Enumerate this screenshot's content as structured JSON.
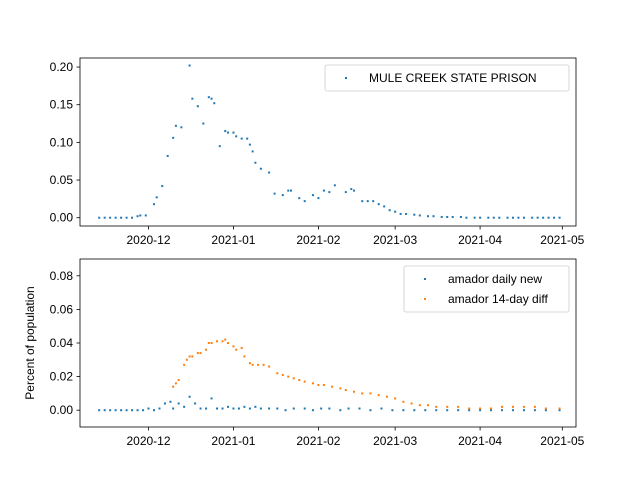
{
  "chart_data": [
    {
      "type": "scatter",
      "x_axis": {
        "ticks": [
          "2020-12",
          "2021-01",
          "2021-02",
          "2021-03",
          "2021-04",
          "2021-05"
        ],
        "range": [
          "2020-11-06",
          "2021-05-06"
        ]
      },
      "y_axis": {
        "label": "",
        "ticks": [
          "0.00",
          "0.05",
          "0.10",
          "0.15",
          "0.20"
        ],
        "range": [
          -0.011,
          0.212
        ]
      },
      "legend": {
        "position": "upper-right"
      },
      "series": [
        {
          "name": "MULE CREEK STATE PRISON",
          "color": "#1f77b4",
          "points": [
            [
              "2020-11-13",
              0
            ],
            [
              "2020-11-15",
              0
            ],
            [
              "2020-11-17",
              0
            ],
            [
              "2020-11-19",
              0
            ],
            [
              "2020-11-21",
              0
            ],
            [
              "2020-11-23",
              0
            ],
            [
              "2020-11-25",
              0
            ],
            [
              "2020-11-27",
              0.002
            ],
            [
              "2020-11-28",
              0.003
            ],
            [
              "2020-11-30",
              0.003
            ],
            [
              "2020-12-03",
              0.018
            ],
            [
              "2020-12-04",
              0.027
            ],
            [
              "2020-12-06",
              0.042
            ],
            [
              "2020-12-08",
              0.082
            ],
            [
              "2020-12-10",
              0.106
            ],
            [
              "2020-12-11",
              0.122
            ],
            [
              "2020-12-13",
              0.12
            ],
            [
              "2020-12-16",
              0.202
            ],
            [
              "2020-12-17",
              0.158
            ],
            [
              "2020-12-19",
              0.148
            ],
            [
              "2020-12-21",
              0.125
            ],
            [
              "2020-12-23",
              0.16
            ],
            [
              "2020-12-24",
              0.158
            ],
            [
              "2020-12-25",
              0.152
            ],
            [
              "2020-12-27",
              0.095
            ],
            [
              "2020-12-29",
              0.115
            ],
            [
              "2020-12-30",
              0.113
            ],
            [
              "2021-01-01",
              0.113
            ],
            [
              "2021-01-02",
              0.108
            ],
            [
              "2021-01-04",
              0.105
            ],
            [
              "2021-01-06",
              0.105
            ],
            [
              "2021-01-07",
              0.097
            ],
            [
              "2021-01-08",
              0.088
            ],
            [
              "2021-01-09",
              0.073
            ],
            [
              "2021-01-11",
              0.065
            ],
            [
              "2021-01-14",
              0.06
            ],
            [
              "2021-01-16",
              0.032
            ],
            [
              "2021-01-19",
              0.03
            ],
            [
              "2021-01-21",
              0.036
            ],
            [
              "2021-01-22",
              0.036
            ],
            [
              "2021-01-25",
              0.026
            ],
            [
              "2021-01-27",
              0.022
            ],
            [
              "2021-01-30",
              0.03
            ],
            [
              "2021-02-01",
              0.026
            ],
            [
              "2021-02-03",
              0.036
            ],
            [
              "2021-02-05",
              0.034
            ],
            [
              "2021-02-07",
              0.043
            ],
            [
              "2021-02-11",
              0.034
            ],
            [
              "2021-02-13",
              0.038
            ],
            [
              "2021-02-14",
              0.036
            ],
            [
              "2021-02-17",
              0.022
            ],
            [
              "2021-02-19",
              0.022
            ],
            [
              "2021-02-21",
              0.022
            ],
            [
              "2021-02-23",
              0.018
            ],
            [
              "2021-02-25",
              0.015
            ],
            [
              "2021-02-27",
              0.01
            ],
            [
              "2021-03-01",
              0.008
            ],
            [
              "2021-03-03",
              0.005
            ],
            [
              "2021-03-05",
              0.005
            ],
            [
              "2021-03-08",
              0.004
            ],
            [
              "2021-03-10",
              0.003
            ],
            [
              "2021-03-13",
              0.002
            ],
            [
              "2021-03-15",
              0.002
            ],
            [
              "2021-03-18",
              0.001
            ],
            [
              "2021-03-20",
              0.001
            ],
            [
              "2021-03-22",
              0.001
            ],
            [
              "2021-03-25",
              0.001
            ],
            [
              "2021-03-27",
              0
            ],
            [
              "2021-03-30",
              0
            ],
            [
              "2021-04-01",
              0
            ],
            [
              "2021-04-04",
              0
            ],
            [
              "2021-04-06",
              0
            ],
            [
              "2021-04-08",
              0
            ],
            [
              "2021-04-11",
              0
            ],
            [
              "2021-04-13",
              0
            ],
            [
              "2021-04-15",
              0
            ],
            [
              "2021-04-17",
              0
            ],
            [
              "2021-04-20",
              0
            ],
            [
              "2021-04-22",
              0
            ],
            [
              "2021-04-24",
              0
            ],
            [
              "2021-04-26",
              0
            ],
            [
              "2021-04-28",
              0
            ],
            [
              "2021-04-30",
              0
            ]
          ]
        }
      ]
    },
    {
      "type": "scatter",
      "x_axis": {
        "ticks": [
          "2020-12",
          "2021-01",
          "2021-02",
          "2021-03",
          "2021-04",
          "2021-05"
        ],
        "range": [
          "2020-11-06",
          "2021-05-06"
        ]
      },
      "y_axis": {
        "label": "Percent of population",
        "ticks": [
          "0.00",
          "0.02",
          "0.04",
          "0.06",
          "0.08"
        ],
        "range": [
          -0.01,
          0.09
        ]
      },
      "legend": {
        "position": "upper-right"
      },
      "series": [
        {
          "name": "amador daily new",
          "color": "#1f77b4",
          "points": [
            [
              "2020-11-13",
              0
            ],
            [
              "2020-11-15",
              0
            ],
            [
              "2020-11-17",
              0
            ],
            [
              "2020-11-19",
              0
            ],
            [
              "2020-11-21",
              0
            ],
            [
              "2020-11-23",
              0
            ],
            [
              "2020-11-25",
              0
            ],
            [
              "2020-11-27",
              0
            ],
            [
              "2020-11-29",
              0
            ],
            [
              "2020-12-01",
              0.001
            ],
            [
              "2020-12-03",
              0
            ],
            [
              "2020-12-05",
              0.001
            ],
            [
              "2020-12-07",
              0.004
            ],
            [
              "2020-12-09",
              0.005
            ],
            [
              "2020-12-10",
              0.001
            ],
            [
              "2020-12-12",
              0.004
            ],
            [
              "2020-12-14",
              0.002
            ],
            [
              "2020-12-16",
              0.008
            ],
            [
              "2020-12-18",
              0.004
            ],
            [
              "2020-12-20",
              0.001
            ],
            [
              "2020-12-22",
              0.001
            ],
            [
              "2020-12-24",
              0.007
            ],
            [
              "2020-12-26",
              0.001
            ],
            [
              "2020-12-28",
              0.001
            ],
            [
              "2020-12-30",
              0.002
            ],
            [
              "2021-01-01",
              0.001
            ],
            [
              "2021-01-03",
              0.001
            ],
            [
              "2021-01-05",
              0.002
            ],
            [
              "2021-01-07",
              0.001
            ],
            [
              "2021-01-09",
              0.002
            ],
            [
              "2021-01-11",
              0.001
            ],
            [
              "2021-01-14",
              0.001
            ],
            [
              "2021-01-17",
              0.001
            ],
            [
              "2021-01-20",
              0
            ],
            [
              "2021-01-23",
              0.001
            ],
            [
              "2021-01-27",
              0.001
            ],
            [
              "2021-01-30",
              0
            ],
            [
              "2021-02-02",
              0.001
            ],
            [
              "2021-02-05",
              0.001
            ],
            [
              "2021-02-09",
              0
            ],
            [
              "2021-02-12",
              0.001
            ],
            [
              "2021-02-16",
              0.001
            ],
            [
              "2021-02-20",
              0
            ],
            [
              "2021-02-24",
              0.001
            ],
            [
              "2021-02-28",
              0
            ],
            [
              "2021-03-04",
              0
            ],
            [
              "2021-03-08",
              0
            ],
            [
              "2021-03-12",
              0
            ],
            [
              "2021-03-16",
              0
            ],
            [
              "2021-03-20",
              0
            ],
            [
              "2021-03-24",
              0
            ],
            [
              "2021-03-28",
              0
            ],
            [
              "2021-04-01",
              0
            ],
            [
              "2021-04-05",
              0
            ],
            [
              "2021-04-09",
              0
            ],
            [
              "2021-04-13",
              0
            ],
            [
              "2021-04-17",
              0
            ],
            [
              "2021-04-21",
              0
            ],
            [
              "2021-04-25",
              0
            ],
            [
              "2021-04-30",
              0
            ]
          ]
        },
        {
          "name": "amador 14-day diff",
          "color": "#ff7f0e",
          "points": [
            [
              "2020-12-10",
              0.014
            ],
            [
              "2020-12-11",
              0.016
            ],
            [
              "2020-12-12",
              0.018
            ],
            [
              "2020-12-14",
              0.027
            ],
            [
              "2020-12-15",
              0.03
            ],
            [
              "2020-12-16",
              0.032
            ],
            [
              "2020-12-17",
              0.032
            ],
            [
              "2020-12-19",
              0.034
            ],
            [
              "2020-12-20",
              0.034
            ],
            [
              "2020-12-22",
              0.036
            ],
            [
              "2020-12-23",
              0.04
            ],
            [
              "2020-12-24",
              0.04
            ],
            [
              "2020-12-26",
              0.041
            ],
            [
              "2020-12-28",
              0.041
            ],
            [
              "2020-12-29",
              0.042
            ],
            [
              "2020-12-30",
              0.04
            ],
            [
              "2021-01-01",
              0.038
            ],
            [
              "2021-01-02",
              0.036
            ],
            [
              "2021-01-04",
              0.037
            ],
            [
              "2021-01-05",
              0.032
            ],
            [
              "2021-01-07",
              0.028
            ],
            [
              "2021-01-08",
              0.027
            ],
            [
              "2021-01-10",
              0.027
            ],
            [
              "2021-01-12",
              0.027
            ],
            [
              "2021-01-14",
              0.026
            ],
            [
              "2021-01-17",
              0.022
            ],
            [
              "2021-01-19",
              0.021
            ],
            [
              "2021-01-21",
              0.02
            ],
            [
              "2021-01-23",
              0.019
            ],
            [
              "2021-01-25",
              0.018
            ],
            [
              "2021-01-27",
              0.017
            ],
            [
              "2021-01-30",
              0.016
            ],
            [
              "2021-02-01",
              0.015
            ],
            [
              "2021-02-03",
              0.015
            ],
            [
              "2021-02-06",
              0.014
            ],
            [
              "2021-02-09",
              0.013
            ],
            [
              "2021-02-11",
              0.012
            ],
            [
              "2021-02-14",
              0.011
            ],
            [
              "2021-02-17",
              0.01
            ],
            [
              "2021-02-20",
              0.01
            ],
            [
              "2021-02-23",
              0.009
            ],
            [
              "2021-02-26",
              0.008
            ],
            [
              "2021-03-01",
              0.007
            ],
            [
              "2021-03-04",
              0.005
            ],
            [
              "2021-03-07",
              0.004
            ],
            [
              "2021-03-10",
              0.003
            ],
            [
              "2021-03-13",
              0.003
            ],
            [
              "2021-03-16",
              0.002
            ],
            [
              "2021-03-20",
              0.002
            ],
            [
              "2021-03-24",
              0.002
            ],
            [
              "2021-03-28",
              0.001
            ],
            [
              "2021-04-01",
              0.001
            ],
            [
              "2021-04-05",
              0.001
            ],
            [
              "2021-04-09",
              0.002
            ],
            [
              "2021-04-13",
              0.002
            ],
            [
              "2021-04-17",
              0.002
            ],
            [
              "2021-04-21",
              0.002
            ],
            [
              "2021-04-25",
              0.001
            ],
            [
              "2021-04-30",
              0.001
            ]
          ]
        }
      ]
    }
  ]
}
